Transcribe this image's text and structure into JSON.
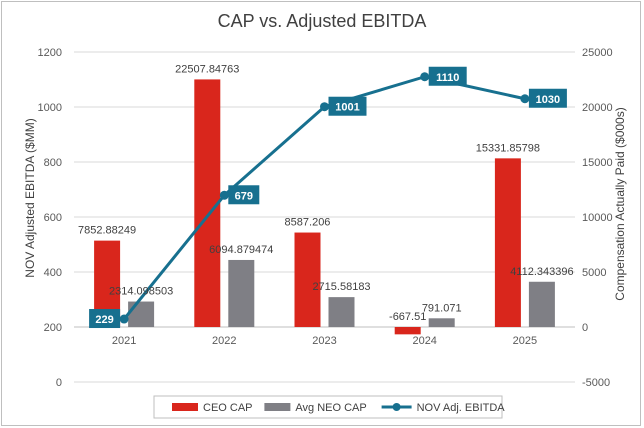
{
  "chart_data": {
    "type": "bar",
    "title": "CAP vs. Adjusted EBITDA",
    "categories": [
      "2021",
      "2022",
      "2023",
      "2024",
      "2025"
    ],
    "ylabel_left": "NOV Adjusted EBITDA ($MM)",
    "ylabel_right": "Compensation Actually Paid ($000s)",
    "ylim_left": [
      0,
      1200
    ],
    "ylim_right": [
      -5000,
      25000
    ],
    "yticks_left": [
      "0",
      "200",
      "400",
      "600",
      "800",
      "1000",
      "1200"
    ],
    "yticks_right": [
      "-5000",
      "0",
      "5000",
      "10000",
      "15000",
      "20000",
      "25000"
    ],
    "grid": true,
    "legend_position": "bottom",
    "series": [
      {
        "name": "CEO CAP",
        "axis": "right",
        "kind": "bar",
        "color": "#d9261c",
        "values": [
          7852.88249,
          22507.84763,
          8587.206,
          -667.51,
          15331.85798
        ],
        "labels": [
          "7852.88249",
          "22507.84763",
          "8587.206",
          "-667.51",
          "15331.85798"
        ]
      },
      {
        "name": "Avg NEO CAP",
        "axis": "right",
        "kind": "bar",
        "color": "#7f7f85",
        "values": [
          2314.098503,
          6094.879474,
          2715.58183,
          791.071,
          4112.343396
        ],
        "labels": [
          "2314.098503",
          "6094.879474",
          "2715.58183",
          "791.071",
          "4112.343396"
        ]
      },
      {
        "name": "NOV Adj. EBITDA",
        "axis": "left",
        "kind": "line",
        "color": "#17708f",
        "values": [
          229,
          679,
          1001,
          1110,
          1030
        ],
        "labels": [
          "229",
          "679",
          "1001",
          "1110",
          "1030"
        ]
      }
    ]
  }
}
